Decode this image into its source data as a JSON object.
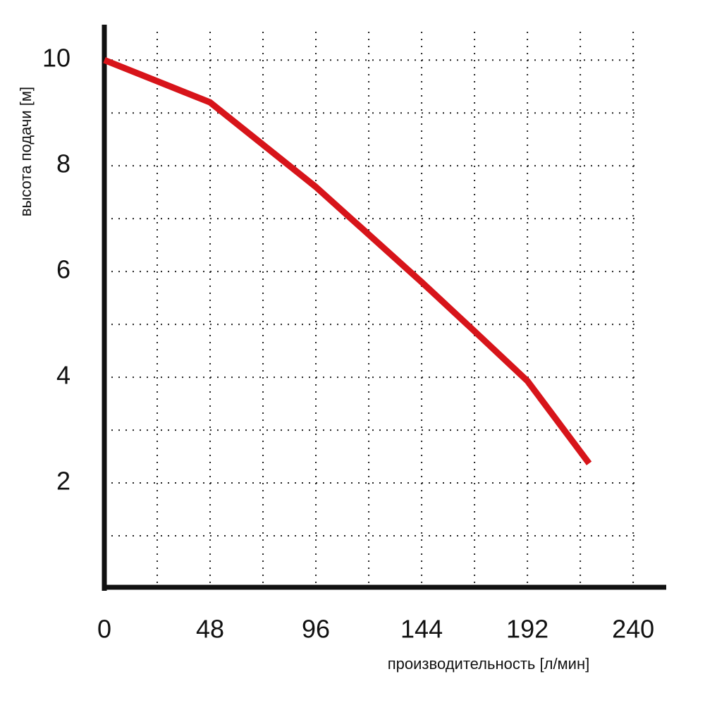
{
  "chart_data": {
    "type": "line",
    "x_label": "производительность [л/мин]",
    "y_label": "высота подачи [м]",
    "xlim": [
      0,
      255
    ],
    "ylim": [
      0,
      10.67
    ],
    "xticks": [
      0,
      48,
      96,
      144,
      192,
      240
    ],
    "yticks": [
      2,
      4,
      6,
      8,
      10
    ],
    "xgrid": [
      24,
      48,
      72,
      96,
      120,
      144,
      168,
      192,
      216,
      240
    ],
    "ygrid": [
      1,
      2,
      3,
      4,
      5,
      6,
      7,
      8,
      9,
      10
    ],
    "grid": true,
    "series": [
      {
        "name": null,
        "color": "#d7141a",
        "x": [
          0,
          24,
          48,
          72,
          96,
          120,
          144,
          168,
          192,
          220
        ],
        "values": [
          10,
          9.6,
          9.2,
          8.4,
          7.6,
          6.7,
          5.8,
          4.87,
          3.93,
          2.37
        ]
      }
    ]
  }
}
